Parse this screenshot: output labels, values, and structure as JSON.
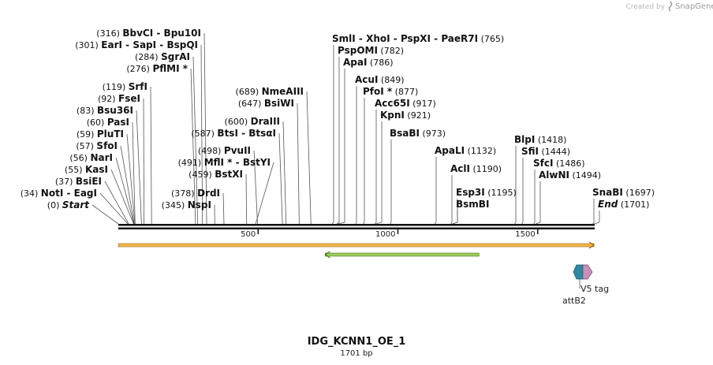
{
  "credit": {
    "prefix": "Created by",
    "brand": "SnapGene",
    "icon": "snapgene-logo-icon"
  },
  "map": {
    "title": "IDG_KCNN1_OE_1",
    "length_label": "1701 bp",
    "length": 1701,
    "ticks": [
      {
        "value": 500,
        "label": "500"
      },
      {
        "value": 1000,
        "label": "1000"
      },
      {
        "value": 1500,
        "label": "1500"
      }
    ],
    "features": [
      {
        "name": "orange-feature",
        "start": 1,
        "end": 1701,
        "direction": "forward",
        "color": "#f2b84a",
        "stroke": "#9a6a10"
      },
      {
        "name": "green-feature",
        "start": 740,
        "end": 1290,
        "direction": "reverse",
        "color": "#9ccb5c",
        "stroke": "#4e7a20"
      }
    ],
    "small_features": [
      {
        "name": "attB2",
        "label": "attB2",
        "position": 1640,
        "color": "#2e88a0"
      },
      {
        "name": "v5-tag",
        "label": "V5 tag",
        "position": 1655,
        "color": "#c98fb4"
      }
    ]
  },
  "sites": [
    {
      "id": "start-site",
      "segments": [
        {
          "pos": "(0)",
          "name": "Start",
          "italic": true
        }
      ],
      "position": 0
    },
    {
      "id": "noti-eagi-site",
      "segments": [
        {
          "pos": "(34)",
          "name": "NotI"
        },
        {
          "sep": " - "
        },
        {
          "name": "EagI"
        }
      ],
      "position": 34
    },
    {
      "id": "bsiei-site",
      "segments": [
        {
          "pos": "(37)",
          "name": "BsiEI"
        }
      ],
      "position": 37
    },
    {
      "id": "kasi-site",
      "segments": [
        {
          "pos": "(55)",
          "name": "KasI"
        }
      ],
      "position": 55
    },
    {
      "id": "nari-site",
      "segments": [
        {
          "pos": "(56)",
          "name": "NarI"
        }
      ],
      "position": 56
    },
    {
      "id": "sfoi-site",
      "segments": [
        {
          "pos": "(57)",
          "name": "SfoI"
        }
      ],
      "position": 57
    },
    {
      "id": "pluti-site",
      "segments": [
        {
          "pos": "(59)",
          "name": "PluTI"
        }
      ],
      "position": 59
    },
    {
      "id": "pasi-site",
      "segments": [
        {
          "pos": "(60)",
          "name": "PasI"
        }
      ],
      "position": 60
    },
    {
      "id": "bsu36i-site",
      "segments": [
        {
          "pos": "(83)",
          "name": "Bsu36I"
        }
      ],
      "position": 83
    },
    {
      "id": "fsei-site",
      "segments": [
        {
          "pos": "(92)",
          "name": "FseI"
        }
      ],
      "position": 92
    },
    {
      "id": "srfi-site",
      "segments": [
        {
          "pos": "(119)",
          "name": "SrfI"
        }
      ],
      "position": 119
    },
    {
      "id": "pflmi-site",
      "segments": [
        {
          "pos": "(276)",
          "name": "PflMI *"
        }
      ],
      "position": 276
    },
    {
      "id": "sgrai-site",
      "segments": [
        {
          "pos": "(284)",
          "name": "SgrAI"
        }
      ],
      "position": 284
    },
    {
      "id": "eari-sapi-bspqi-site",
      "segments": [
        {
          "pos": "(301)",
          "name": "EarI"
        },
        {
          "sep": " - "
        },
        {
          "name": "SapI"
        },
        {
          "sep": " - "
        },
        {
          "name": "BspQI"
        }
      ],
      "position": 301
    },
    {
      "id": "bbvci-bpu10i-site",
      "segments": [
        {
          "pos": "(316)",
          "name": "BbvCI"
        },
        {
          "sep": " - "
        },
        {
          "name": "Bpu10I"
        }
      ],
      "position": 316
    },
    {
      "id": "nspi-site",
      "segments": [
        {
          "pos": "(345)",
          "name": "NspI"
        }
      ],
      "position": 345
    },
    {
      "id": "drdi-site",
      "segments": [
        {
          "pos": "(378)",
          "name": "DrdI"
        }
      ],
      "position": 378
    },
    {
      "id": "bstxi-site",
      "segments": [
        {
          "pos": "(459)",
          "name": "BstXI"
        }
      ],
      "position": 459
    },
    {
      "id": "mfli-bstyi-site",
      "segments": [
        {
          "pos": "(491)",
          "name": "MflI *"
        },
        {
          "sep": " - "
        },
        {
          "name": "BstYI"
        }
      ],
      "position": 491
    },
    {
      "id": "pvuii-site",
      "segments": [
        {
          "pos": "(498)",
          "name": "PvuII"
        }
      ],
      "position": 498
    },
    {
      "id": "btsi-btsai-site",
      "segments": [
        {
          "pos": "(587)",
          "name": "BtsI"
        },
        {
          "sep": " - "
        },
        {
          "name": "BtsαI"
        }
      ],
      "position": 587
    },
    {
      "id": "draiii-site",
      "segments": [
        {
          "pos": "(600)",
          "name": "DraIII"
        }
      ],
      "position": 600
    },
    {
      "id": "bsiwi-site",
      "segments": [
        {
          "pos": "(647)",
          "name": "BsiWI"
        }
      ],
      "position": 647
    },
    {
      "id": "nmeaiii-site",
      "segments": [
        {
          "pos": "(689)",
          "name": "NmeAIII"
        }
      ],
      "position": 689
    },
    {
      "id": "smli-xhoi-pspxi-paer7i-site",
      "segments": [
        {
          "name": "SmlI"
        },
        {
          "sep": " - "
        },
        {
          "name": "XhoI"
        },
        {
          "sep": " - "
        },
        {
          "name": "PspXI"
        },
        {
          "sep": " - "
        },
        {
          "name": "PaeR7I"
        },
        {
          "pos": "(765)"
        }
      ],
      "position": 765
    },
    {
      "id": "pspomi-site",
      "segments": [
        {
          "name": "PspOMI"
        },
        {
          "pos": "(782)"
        }
      ],
      "position": 782
    },
    {
      "id": "apai-site",
      "segments": [
        {
          "name": "ApaI"
        },
        {
          "pos": "(786)"
        }
      ],
      "position": 786
    },
    {
      "id": "acui-site",
      "segments": [
        {
          "name": "AcuI"
        },
        {
          "pos": "(849)"
        }
      ],
      "position": 849
    },
    {
      "id": "pfoi-site",
      "segments": [
        {
          "name": "PfoI *"
        },
        {
          "pos": "(877)"
        }
      ],
      "position": 877
    },
    {
      "id": "acc65i-site",
      "segments": [
        {
          "name": "Acc65I"
        },
        {
          "pos": "(917)"
        }
      ],
      "position": 917
    },
    {
      "id": "kpni-site",
      "segments": [
        {
          "name": "KpnI"
        },
        {
          "pos": "(921)"
        }
      ],
      "position": 921
    },
    {
      "id": "bsabi-site",
      "segments": [
        {
          "name": "BsaBI"
        },
        {
          "pos": "(973)"
        }
      ],
      "position": 973
    },
    {
      "id": "apali-site",
      "segments": [
        {
          "name": "ApaLI"
        },
        {
          "pos": "(1132)"
        }
      ],
      "position": 1132
    },
    {
      "id": "acli-site",
      "segments": [
        {
          "name": "AclI"
        },
        {
          "pos": "(1190)"
        }
      ],
      "position": 1190
    },
    {
      "id": "esp3i-site",
      "segments": [
        {
          "name": "Esp3I"
        },
        {
          "pos": "(1195)"
        }
      ],
      "position": 1195
    },
    {
      "id": "bsmbi-site",
      "segments": [
        {
          "name": "BsmBI"
        }
      ],
      "position": 1195
    },
    {
      "id": "blpi-site",
      "segments": [
        {
          "name": "BlpI"
        },
        {
          "pos": "(1418)"
        }
      ],
      "position": 1418
    },
    {
      "id": "sfii-site",
      "segments": [
        {
          "name": "SfiI"
        },
        {
          "pos": "(1444)"
        }
      ],
      "position": 1444
    },
    {
      "id": "sfci-site",
      "segments": [
        {
          "name": "SfcI"
        },
        {
          "pos": "(1486)"
        }
      ],
      "position": 1486
    },
    {
      "id": "alwni-site",
      "segments": [
        {
          "name": "AlwNI"
        },
        {
          "pos": "(1494)"
        }
      ],
      "position": 1494
    },
    {
      "id": "snabi-site",
      "segments": [
        {
          "name": "SnaBI"
        },
        {
          "pos": "(1697)"
        }
      ],
      "position": 1697
    },
    {
      "id": "end-site",
      "segments": [
        {
          "name": "End",
          "italic": true
        },
        {
          "pos": "(1701)"
        }
      ],
      "position": 1701
    }
  ]
}
